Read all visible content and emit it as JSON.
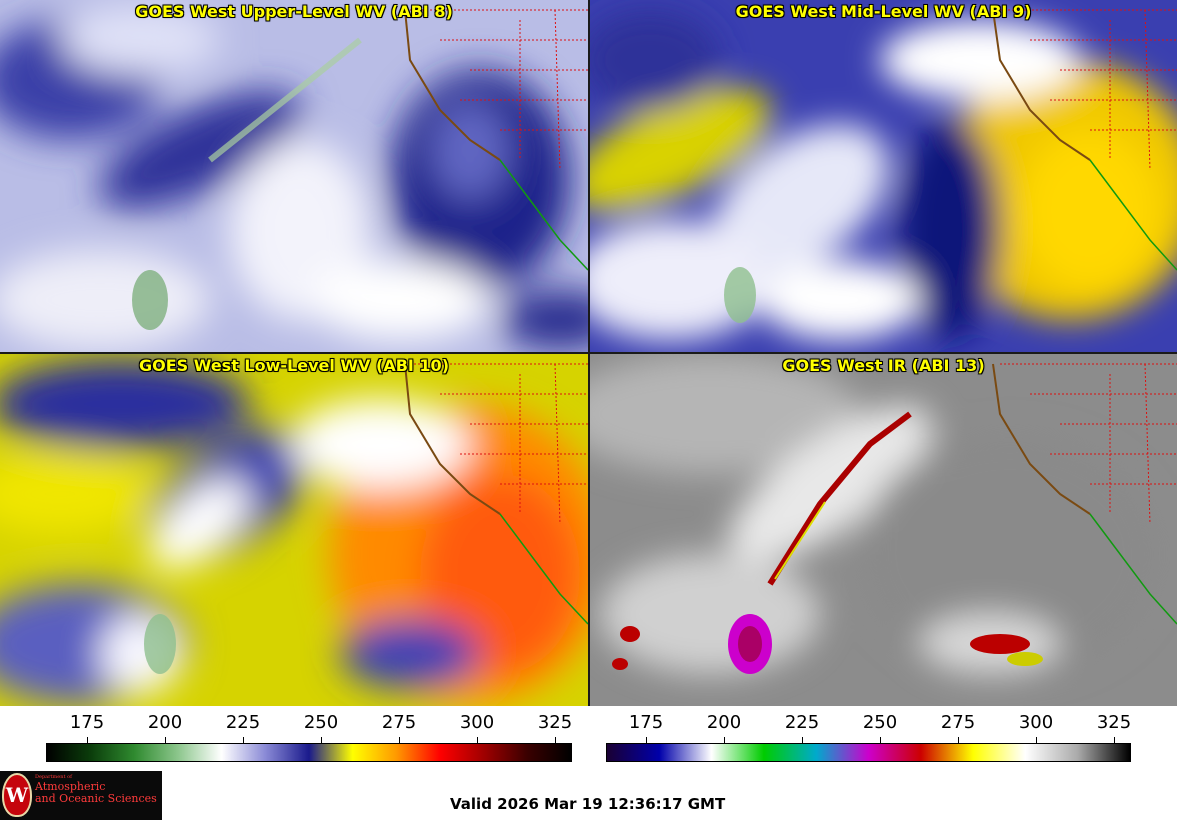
{
  "panels": [
    {
      "title": "GOES West Upper-Level WV (ABI 8)"
    },
    {
      "title": "GOES West Mid-Level WV (ABI 9)"
    },
    {
      "title": "GOES West Low-Level WV (ABI 10)"
    },
    {
      "title": "GOES West IR (ABI 13)"
    }
  ],
  "scales": [
    {
      "name": "water-vapor-colorbar",
      "ticks": [
        "175",
        "200",
        "225",
        "250",
        "275",
        "300",
        "325"
      ],
      "colors": [
        "#000000",
        "#0b3d0b",
        "#2f8a2f",
        "#8cc68c",
        "#ffffff",
        "#8a8ad6",
        "#1a1a8c",
        "#ffff00",
        "#ff9900",
        "#ff0000",
        "#a00000",
        "#3a0000",
        "#000000"
      ]
    },
    {
      "name": "infrared-colorbar",
      "ticks": [
        "175",
        "200",
        "225",
        "250",
        "275",
        "300",
        "325"
      ],
      "colors": [
        "#1a0033",
        "#0000aa",
        "#ffffff",
        "#00cc00",
        "#00aacc",
        "#cc00cc",
        "#cc0000",
        "#ffff00",
        "#ffffff",
        "#aaaaaa",
        "#000000"
      ]
    }
  ],
  "logo": {
    "seal_letter": "W",
    "line1": "Department of",
    "line2": "Atmospheric",
    "line3": "and Oceanic Sciences"
  },
  "valid_time": "Valid 2026 Mar 19 12:36:17 GMT"
}
